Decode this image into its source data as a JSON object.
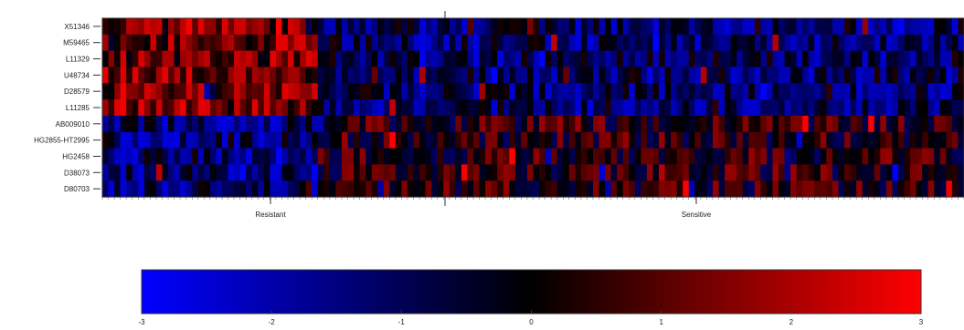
{
  "chart_data": {
    "type": "heatmap",
    "rows": [
      "X51346",
      "M59465",
      "L11329",
      "U48734",
      "D28579",
      "L11285",
      "AB009010",
      "HG2855-HT2995",
      "HG2458",
      "D38073",
      "D80703"
    ],
    "groups": [
      "Resistant",
      "Sensitive"
    ],
    "resistant_columns": 36,
    "sensitive_columns": 108,
    "group_pattern": {
      "Resistant": "Rows X51346 to L11285 mostly positive (red); rows AB009010 to D80703 mostly negative (blue)",
      "Sensitive": "Rows X51346 to L11285 mostly negative (blue); rows AB009010 to D80703 mixed, often positive (red)"
    },
    "colorbar": {
      "range": [
        -3,
        3
      ],
      "ticks": [
        "-3",
        "-2",
        "-1",
        "0",
        "1",
        "2",
        "3"
      ],
      "colors": [
        "#0000ff",
        "#000000",
        "#ff0000"
      ]
    },
    "grid": false
  }
}
